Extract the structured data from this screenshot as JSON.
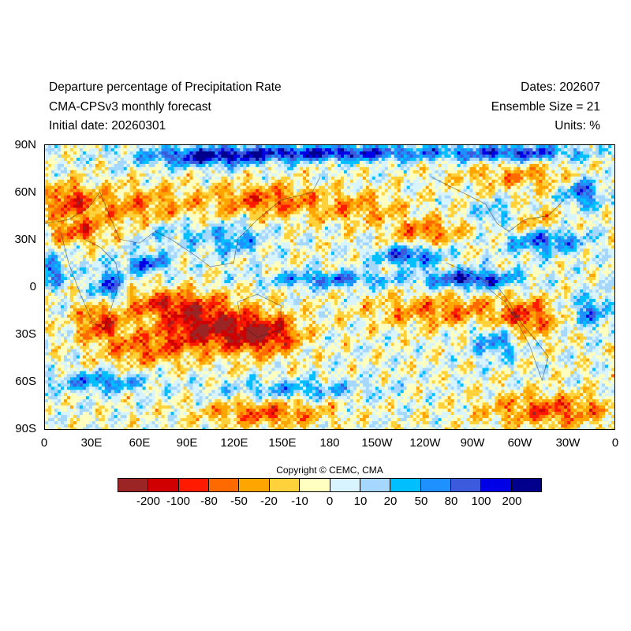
{
  "header": {
    "title": "Departure percentage of Precipitation Rate",
    "model": "CMA-CPSv3 monthly forecast",
    "initial_date": "Initial date: 20260301",
    "dates": "Dates: 202607",
    "ensemble": "Ensemble Size = 21",
    "units": "Units: %"
  },
  "axes": {
    "lat_labels": [
      "90N",
      "60N",
      "30N",
      "0",
      "30S",
      "60S",
      "90S"
    ],
    "lon_labels": [
      "0",
      "30E",
      "60E",
      "90E",
      "120E",
      "150E",
      "180",
      "150W",
      "120W",
      "90W",
      "60W",
      "30W",
      "0"
    ]
  },
  "copyright": "Copyright © CEMC, CMA",
  "colorbar": {
    "colors": [
      "#9b2424",
      "#d10000",
      "#ff1a00",
      "#ff6a00",
      "#ffa500",
      "#ffd23c",
      "#ffffc0",
      "#d8f4ff",
      "#a6d8ff",
      "#00bfff",
      "#1e90ff",
      "#3c5adc",
      "#0000e6",
      "#00008c"
    ],
    "labels": [
      "-200",
      "-100",
      "-80",
      "-50",
      "-20",
      "-10",
      "0",
      "10",
      "20",
      "50",
      "80",
      "100",
      "200"
    ]
  }
}
